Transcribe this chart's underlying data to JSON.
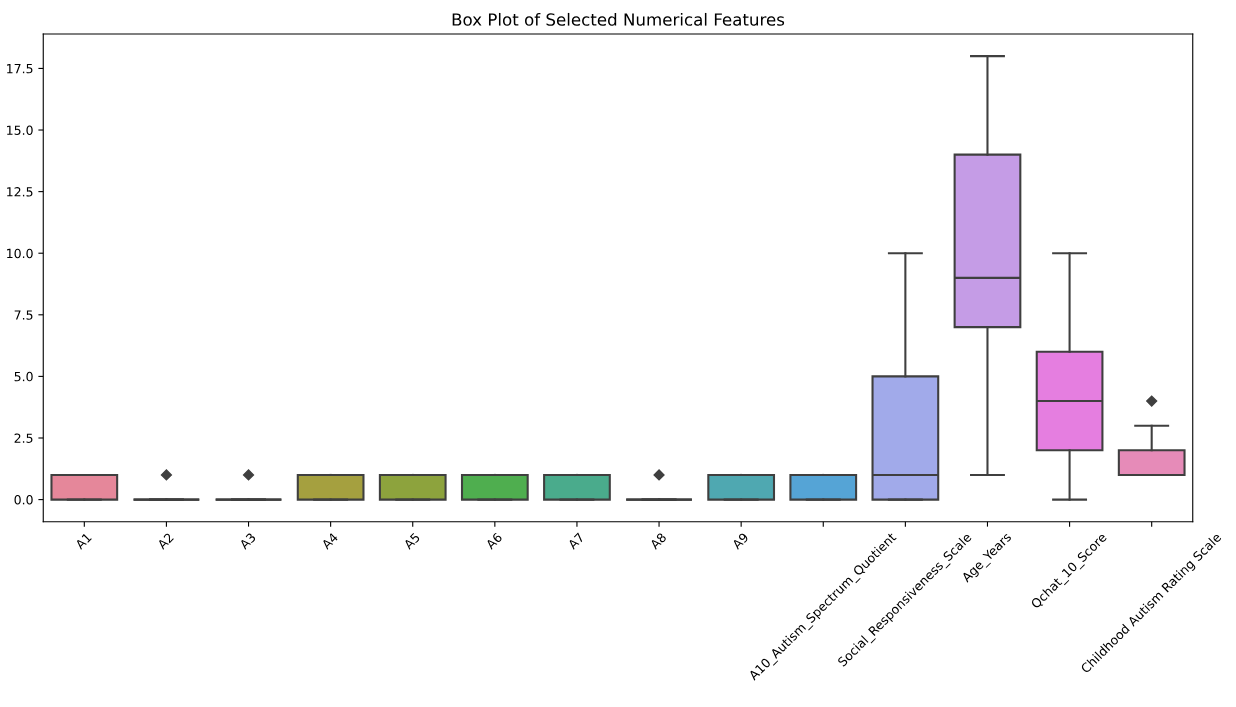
{
  "chart_data": {
    "type": "box",
    "title": "Box Plot of Selected Numerical Features",
    "categories": [
      "A1",
      "A2",
      "A3",
      "A4",
      "A5",
      "A6",
      "A7",
      "A8",
      "A9",
      "A10_Autism_Spectrum_Quotient",
      "Social_Responsiveness_Scale",
      "Age_Years",
      "Qchat_10_Score",
      "Childhood Autism Rating Scale"
    ],
    "colors": [
      "#e5879a",
      null,
      null,
      "#a5a03f",
      "#8da33d",
      "#4fae4f",
      "#4aab8c",
      null,
      "#4fa8b1",
      "#55a4d6",
      "#a1aaea",
      "#c59ce6",
      "#e57ee0",
      "#e68bb8"
    ],
    "boxes": [
      {
        "low": 0,
        "q1": 0,
        "median": 1,
        "q3": 1,
        "high": 1
      },
      {
        "low": 0,
        "q1": 0,
        "median": 0,
        "q3": 0,
        "high": 0,
        "outliers": [
          1
        ]
      },
      {
        "low": 0,
        "q1": 0,
        "median": 0,
        "q3": 0,
        "high": 0,
        "outliers": [
          1
        ]
      },
      {
        "low": 0,
        "q1": 0,
        "median": 1,
        "q3": 1,
        "high": 1
      },
      {
        "low": 0,
        "q1": 0,
        "median": 1,
        "q3": 1,
        "high": 1
      },
      {
        "low": 0,
        "q1": 0,
        "median": 1,
        "q3": 1,
        "high": 1
      },
      {
        "low": 0,
        "q1": 0,
        "median": 1,
        "q3": 1,
        "high": 1
      },
      {
        "low": 0,
        "q1": 0,
        "median": 0,
        "q3": 0,
        "high": 0,
        "outliers": [
          1
        ]
      },
      {
        "low": 0,
        "q1": 0,
        "median": 1,
        "q3": 1,
        "high": 1
      },
      {
        "low": 0,
        "q1": 0,
        "median": 1,
        "q3": 1,
        "high": 1
      },
      {
        "low": 0,
        "q1": 0,
        "median": 1,
        "q3": 5,
        "high": 10
      },
      {
        "low": 1,
        "q1": 7,
        "median": 9,
        "q3": 14,
        "high": 18
      },
      {
        "low": 0,
        "q1": 2,
        "median": 4,
        "q3": 6,
        "high": 10
      },
      {
        "low": 1,
        "q1": 1,
        "median": 1,
        "q3": 2,
        "high": 3,
        "outliers": [
          4
        ]
      }
    ],
    "ylim": [
      -0.9,
      18.9
    ],
    "yticks": [
      {
        "value": 0,
        "label": "0.0"
      },
      {
        "value": 2.5,
        "label": "2.5"
      },
      {
        "value": 5,
        "label": "5.0"
      },
      {
        "value": 7.5,
        "label": "7.5"
      },
      {
        "value": 10,
        "label": "10.0"
      },
      {
        "value": 12.5,
        "label": "12.5"
      },
      {
        "value": 15,
        "label": "15.0"
      },
      {
        "value": 17.5,
        "label": "17.5"
      }
    ],
    "marker": "diamond",
    "grid": false
  }
}
